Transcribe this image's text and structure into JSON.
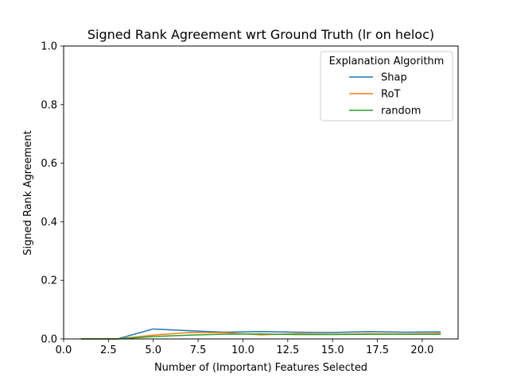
{
  "chart_data": {
    "type": "line",
    "title": "Signed Rank Agreement wrt Ground Truth (lr on heloc)",
    "xlabel": "Number of (Important) Features Selected",
    "ylabel": "Signed Rank Agreement",
    "xlim": [
      0.0,
      22.0
    ],
    "ylim": [
      0.0,
      1.0
    ],
    "xticks": [
      0.0,
      2.5,
      5.0,
      7.5,
      10.0,
      12.5,
      15.0,
      17.5,
      20.0
    ],
    "xtick_labels": [
      "0.0",
      "2.5",
      "5.0",
      "7.5",
      "10.0",
      "12.5",
      "15.0",
      "17.5",
      "20.0"
    ],
    "yticks": [
      0.0,
      0.2,
      0.4,
      0.6,
      0.8,
      1.0
    ],
    "ytick_labels": [
      "0.0",
      "0.2",
      "0.4",
      "0.6",
      "0.8",
      "1.0"
    ],
    "grid": false,
    "legend": {
      "title": "Explanation Algorithm",
      "placement": "top-right"
    },
    "x": [
      1,
      3,
      5,
      7,
      9,
      11,
      13,
      15,
      17,
      19,
      21
    ],
    "series": [
      {
        "name": "Shap",
        "color": "#1f77b4",
        "values": [
          0.0,
          0.0,
          0.034,
          0.028,
          0.023,
          0.025,
          0.023,
          0.022,
          0.025,
          0.023,
          0.024
        ]
      },
      {
        "name": "RoT",
        "color": "#ff7f0e",
        "values": [
          0.0,
          0.0,
          0.013,
          0.022,
          0.021,
          0.014,
          0.018,
          0.016,
          0.018,
          0.017,
          0.019
        ]
      },
      {
        "name": "random",
        "color": "#2ca02c",
        "values": [
          0.0,
          0.0,
          0.008,
          0.013,
          0.016,
          0.017,
          0.015,
          0.015,
          0.016,
          0.016,
          0.016
        ]
      }
    ]
  }
}
